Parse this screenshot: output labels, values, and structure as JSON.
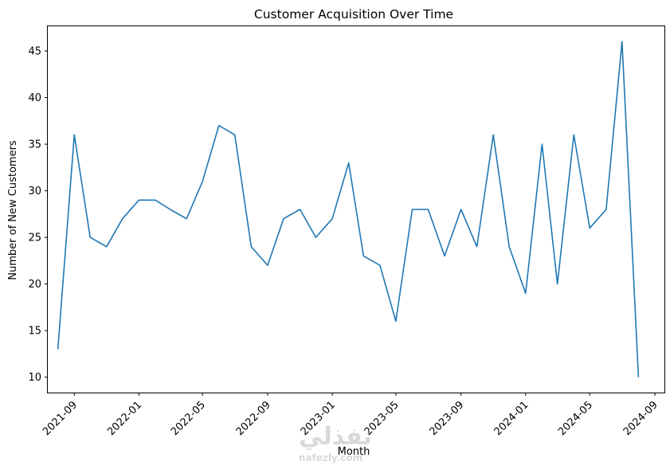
{
  "chart_data": {
    "type": "line",
    "title": "Customer Acquisition Over Time",
    "xlabel": "Month",
    "ylabel": "Number of New Customers",
    "x_ticks": [
      "2021-09",
      "2022-01",
      "2022-05",
      "2022-09",
      "2023-01",
      "2023-05",
      "2023-09",
      "2024-01",
      "2024-05",
      "2024-09"
    ],
    "y_ticks": [
      10,
      15,
      20,
      25,
      30,
      35,
      40,
      45
    ],
    "ylim": [
      8.35,
      47.65
    ],
    "xlim": [
      "2021-07-13",
      "2024-09-19"
    ],
    "grid": false,
    "series": [
      {
        "color": "#1f77b4",
        "x": [
          "2021-08-01",
          "2021-09-01",
          "2021-10-01",
          "2021-11-01",
          "2021-12-01",
          "2022-01-01",
          "2022-02-01",
          "2022-03-01",
          "2022-04-01",
          "2022-05-01",
          "2022-06-01",
          "2022-07-01",
          "2022-08-01",
          "2022-09-01",
          "2022-10-01",
          "2022-11-01",
          "2022-12-01",
          "2023-01-01",
          "2023-02-01",
          "2023-03-01",
          "2023-04-01",
          "2023-05-01",
          "2023-06-01",
          "2023-07-01",
          "2023-08-01",
          "2023-09-01",
          "2023-10-01",
          "2023-11-01",
          "2023-12-01",
          "2024-01-01",
          "2024-02-01",
          "2024-03-01",
          "2024-04-01",
          "2024-05-01",
          "2024-06-01",
          "2024-07-01",
          "2024-08-01"
        ],
        "values": [
          13,
          36,
          25,
          24,
          27,
          29,
          29,
          28,
          27,
          31,
          37,
          36,
          24,
          22,
          27,
          28,
          25,
          27,
          33,
          23,
          22,
          16,
          28,
          28,
          23,
          28,
          24,
          36,
          24,
          19,
          35,
          20,
          36,
          26,
          28,
          46,
          10
        ]
      }
    ]
  },
  "watermark": {
    "arabic": "نفذلي",
    "latin": "nafezly.com"
  }
}
